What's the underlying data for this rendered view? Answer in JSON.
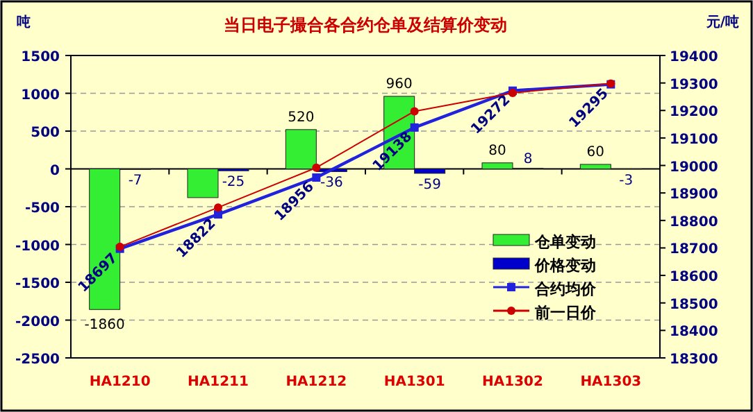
{
  "chart_data": {
    "type": "bar",
    "title": "当日电子撮合各合约仓单及结算价变动",
    "ylabel": "吨",
    "y2label": "元/吨",
    "categories": [
      "HA1210",
      "HA1211",
      "HA1212",
      "HA1301",
      "HA1302",
      "HA1303"
    ],
    "series": [
      {
        "name": "仓单变动",
        "color": "#33ee33",
        "values": [
          -1860,
          -380,
          520,
          960,
          80,
          60
        ],
        "value_labels": [
          "-1860",
          null,
          "520",
          "960",
          "80",
          "60"
        ]
      },
      {
        "name": "价格变动",
        "color": "#0000cc",
        "values": [
          -7,
          -25,
          -36,
          -59,
          8,
          -3
        ],
        "value_labels": [
          "-7",
          "-25",
          "-36",
          "-59",
          "8",
          "-3"
        ]
      },
      {
        "name": "合约均价",
        "type": "line",
        "axis": "y2",
        "color": "#2222dd",
        "marker": "square",
        "values": [
          18697,
          18822,
          18956,
          19138,
          19272,
          19295
        ],
        "value_labels": [
          "18697",
          "18822",
          "18956",
          "19138",
          "19272",
          "19295"
        ]
      },
      {
        "name": "前一日价",
        "type": "line",
        "axis": "y2",
        "color": "#cc0000",
        "marker": "circle",
        "values": [
          18704,
          18847,
          18992,
          19197,
          19264,
          19298
        ]
      }
    ],
    "ylim": [
      -2500,
      1500
    ],
    "yticks": [
      -2500,
      -2000,
      -1500,
      -1000,
      -500,
      0,
      500,
      1000,
      1500
    ],
    "y2lim": [
      18300,
      19400
    ],
    "y2ticks": [
      18300,
      18400,
      18500,
      18600,
      18700,
      18800,
      18900,
      19000,
      19100,
      19200,
      19300,
      19400
    ],
    "grid": "y",
    "legend": "bottom right"
  }
}
